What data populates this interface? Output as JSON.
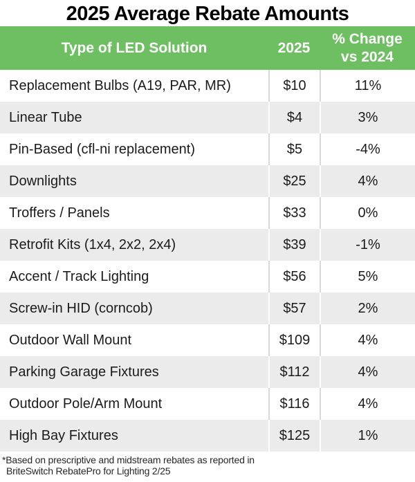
{
  "title": "2025 Average Rebate Amounts",
  "table": {
    "header": {
      "col1": "Type of LED Solution",
      "col2": "2025",
      "col3_line1": "% Change",
      "col3_line2": "vs 2024"
    },
    "rows": [
      {
        "type": "Replacement Bulbs (A19, PAR, MR)",
        "amount": "$10",
        "change": "11%"
      },
      {
        "type": "Linear Tube",
        "amount": "$4",
        "change": "3%"
      },
      {
        "type": "Pin-Based (cfl-ni replacement)",
        "amount": "$5",
        "change": "-4%"
      },
      {
        "type": "Downlights",
        "amount": "$25",
        "change": "4%"
      },
      {
        "type": "Troffers / Panels",
        "amount": "$33",
        "change": "0%"
      },
      {
        "type": "Retrofit Kits (1x4, 2x2, 2x4)",
        "amount": "$39",
        "change": "-1%"
      },
      {
        "type": "Accent / Track Lighting",
        "amount": "$56",
        "change": "5%"
      },
      {
        "type": "Screw-in HID (corncob)",
        "amount": "$57",
        "change": "2%"
      },
      {
        "type": "Outdoor Wall Mount",
        "amount": "$109",
        "change": "4%"
      },
      {
        "type": "Parking Garage Fixtures",
        "amount": "$112",
        "change": "4%"
      },
      {
        "type": "Outdoor Pole/Arm Mount",
        "amount": "$116",
        "change": "4%"
      },
      {
        "type": "High Bay Fixtures",
        "amount": "$125",
        "change": "1%"
      }
    ]
  },
  "footnote": {
    "line1": "*Based on prescriptive and midstream rebates as reported in",
    "line2": "BriteSwitch RebatePro for Lighting 2/25"
  },
  "colors": {
    "header_green": "#6dbf62",
    "row_alt_gray": "#ebebeb",
    "divider_gray": "#d9d9d9",
    "text_dark": "#1b1b1b",
    "footnote_text": "#262626"
  },
  "chart_data": {
    "type": "table",
    "title": "2025 Average Rebate Amounts",
    "columns": [
      "Type of LED Solution",
      "2025",
      "% Change vs 2024"
    ],
    "rows": [
      [
        "Replacement Bulbs (A19, PAR, MR)",
        10,
        "11%"
      ],
      [
        "Linear Tube",
        4,
        "3%"
      ],
      [
        "Pin-Based (cfl-ni replacement)",
        5,
        "-4%"
      ],
      [
        "Downlights",
        25,
        "4%"
      ],
      [
        "Troffers / Panels",
        33,
        "0%"
      ],
      [
        "Retrofit Kits (1x4, 2x2, 2x4)",
        39,
        "-1%"
      ],
      [
        "Accent / Track Lighting",
        56,
        "5%"
      ],
      [
        "Screw-in HID (corncob)",
        57,
        "2%"
      ],
      [
        "Outdoor Wall Mount",
        109,
        "4%"
      ],
      [
        "Parking Garage Fixtures",
        112,
        "4%"
      ],
      [
        "Outdoor Pole/Arm Mount",
        116,
        "4%"
      ],
      [
        "High Bay Fixtures",
        125,
        "1%"
      ]
    ],
    "footnote": "*Based on prescriptive and midstream rebates as reported in BriteSwitch RebatePro for Lighting 2/25"
  }
}
